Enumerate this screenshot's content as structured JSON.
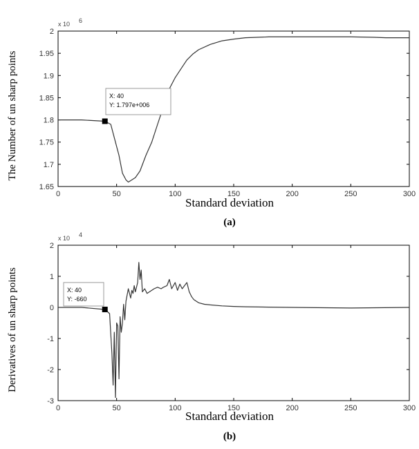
{
  "chart_data": [
    {
      "id": "a",
      "type": "line",
      "caption": "(a)",
      "xlabel": "Standard deviation",
      "ylabel": "The Number of un sharp points",
      "exponent_label": "x 10",
      "exponent_power": "6",
      "xlim": [
        0,
        300
      ],
      "ylim": [
        1.65,
        2.0
      ],
      "xticks": [
        0,
        50,
        100,
        150,
        200,
        250,
        300
      ],
      "yticks": [
        1.65,
        1.7,
        1.75,
        1.8,
        1.85,
        1.9,
        1.95,
        2.0
      ],
      "ytick_labels": [
        "1.65",
        "1.7",
        "1.75",
        "1.8",
        "1.85",
        "1.9",
        "1.95",
        "2"
      ],
      "grid": false,
      "series": [
        {
          "x": [
            0,
            20,
            40,
            45,
            48,
            52,
            55,
            58,
            60,
            63,
            66,
            70,
            75,
            80,
            85,
            90,
            95,
            100,
            105,
            110,
            115,
            120,
            130,
            140,
            150,
            160,
            170,
            180,
            200,
            220,
            250,
            270,
            280,
            300
          ],
          "y": [
            1.8,
            1.8,
            1.797,
            1.79,
            1.76,
            1.72,
            1.68,
            1.665,
            1.66,
            1.665,
            1.67,
            1.685,
            1.72,
            1.75,
            1.79,
            1.83,
            1.87,
            1.895,
            1.915,
            1.935,
            1.948,
            1.958,
            1.97,
            1.978,
            1.982,
            1.985,
            1.986,
            1.987,
            1.987,
            1.987,
            1.987,
            1.986,
            1.985,
            1.985
          ]
        }
      ],
      "marker": {
        "x": 40,
        "y": 1.797
      },
      "datatip": {
        "line1": "X: 40",
        "line2": "Y: 1.797e+006"
      }
    },
    {
      "id": "b",
      "type": "line",
      "caption": "(b)",
      "xlabel": "Standard deviation",
      "ylabel": "Derivatives of un sharp points",
      "exponent_label": "x 10",
      "exponent_power": "4",
      "xlim": [
        0,
        300
      ],
      "ylim": [
        -3,
        2
      ],
      "xticks": [
        0,
        50,
        100,
        150,
        200,
        250,
        300
      ],
      "yticks": [
        -3,
        -2,
        -1,
        0,
        1,
        2
      ],
      "ytick_labels": [
        "-3",
        "-2",
        "-1",
        "0",
        "1",
        "2"
      ],
      "grid": false,
      "series": [
        {
          "x": [
            0,
            20,
            40,
            44,
            46,
            47,
            48,
            49,
            50,
            51,
            52,
            53,
            54,
            55,
            56,
            57,
            58,
            60,
            62,
            63,
            64,
            65,
            66,
            68,
            69,
            70,
            71,
            72,
            74,
            76,
            78,
            80,
            82,
            85,
            88,
            90,
            93,
            95,
            97,
            100,
            102,
            104,
            106,
            108,
            110,
            112,
            114,
            116,
            120,
            125,
            130,
            140,
            150,
            160,
            180,
            200,
            250,
            300
          ],
          "y": [
            0,
            0,
            -0.066,
            -0.2,
            -1.5,
            -2.5,
            -0.8,
            -2.9,
            -0.5,
            -0.6,
            -2.3,
            -0.3,
            -0.8,
            -0.5,
            0.1,
            -0.4,
            0.2,
            0.6,
            0.3,
            0.55,
            0.45,
            0.7,
            0.5,
            0.8,
            1.45,
            0.9,
            1.2,
            0.5,
            0.6,
            0.45,
            0.5,
            0.55,
            0.6,
            0.65,
            0.6,
            0.65,
            0.7,
            0.9,
            0.6,
            0.8,
            0.55,
            0.75,
            0.6,
            0.7,
            0.8,
            0.5,
            0.35,
            0.25,
            0.15,
            0.1,
            0.08,
            0.05,
            0.03,
            0.02,
            0.01,
            0.0,
            -0.02,
            0.0
          ]
        }
      ],
      "marker": {
        "x": 40,
        "y": -0.066
      },
      "datatip": {
        "line1": "X: 40",
        "line2": "Y: -660"
      }
    }
  ],
  "colors": {
    "line": "#333333",
    "axis": "#000000",
    "marker": "#000000",
    "datatip_border": "#999999"
  }
}
